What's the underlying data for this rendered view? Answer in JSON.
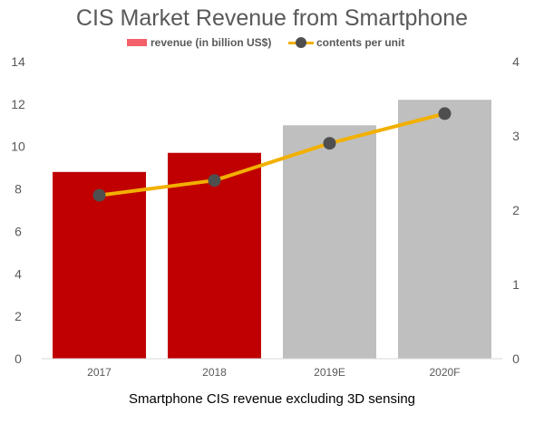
{
  "chart_data": {
    "type": "bar+line",
    "title": "CIS Market Revenue from Smartphone",
    "xlabel": "Smartphone CIS revenue excluding 3D sensing",
    "categories": [
      "2017",
      "2018",
      "2019E",
      "2020F"
    ],
    "series": [
      {
        "name": "revenue (in billion US$)",
        "type": "bar",
        "axis": "left",
        "values": [
          8.8,
          9.7,
          11.0,
          12.2
        ],
        "colors": [
          "#c00000",
          "#c00000",
          "#bfbfbf",
          "#bfbfbf"
        ]
      },
      {
        "name": "contents per unit",
        "type": "line",
        "axis": "right",
        "values": [
          2.2,
          2.4,
          2.9,
          3.3
        ],
        "line_color": "#f2b000",
        "marker_color": "#4f4f4f"
      }
    ],
    "y_left": {
      "min": 0,
      "max": 14,
      "ticks": [
        "0",
        "2",
        "4",
        "6",
        "8",
        "10",
        "12",
        "14"
      ]
    },
    "y_right": {
      "min": 0,
      "max": 4,
      "ticks": [
        "0",
        "1",
        "2",
        "3",
        "4"
      ]
    },
    "grid": false,
    "legend_position": "top-center"
  }
}
